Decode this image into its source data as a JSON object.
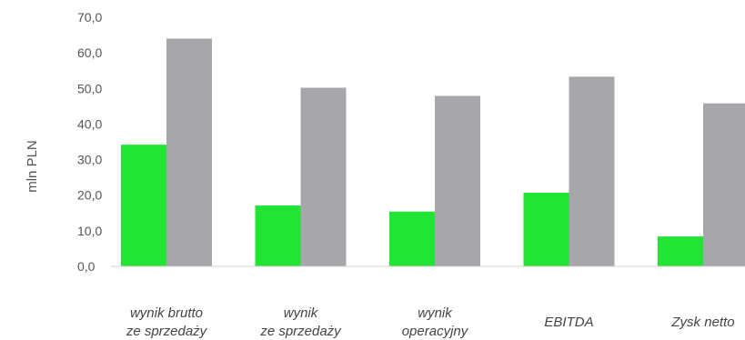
{
  "chart_data": {
    "type": "bar",
    "ylabel": "mln PLN",
    "ylim": [
      0,
      70
    ],
    "y_ticks": [
      "0,0",
      "10,0",
      "20,0",
      "30,0",
      "40,0",
      "50,0",
      "60,0",
      "70,0"
    ],
    "y_tick_values": [
      0,
      10,
      20,
      30,
      40,
      50,
      60,
      70
    ],
    "categories": [
      [
        "wynik brutto",
        "ze sprzedaży"
      ],
      [
        "wynik",
        "ze sprzedaży"
      ],
      [
        "wynik",
        "operacyjny"
      ],
      [
        "EBITDA"
      ],
      [
        "Zysk netto"
      ]
    ],
    "series": [
      {
        "values": [
          34.2,
          17.1,
          15.4,
          20.7,
          8.4
        ]
      },
      {
        "values": [
          64.0,
          50.2,
          47.9,
          53.3,
          45.8
        ]
      }
    ],
    "colors": [
      "#22e435",
      "#a7a7ab"
    ],
    "grid": false,
    "legend": "none"
  }
}
